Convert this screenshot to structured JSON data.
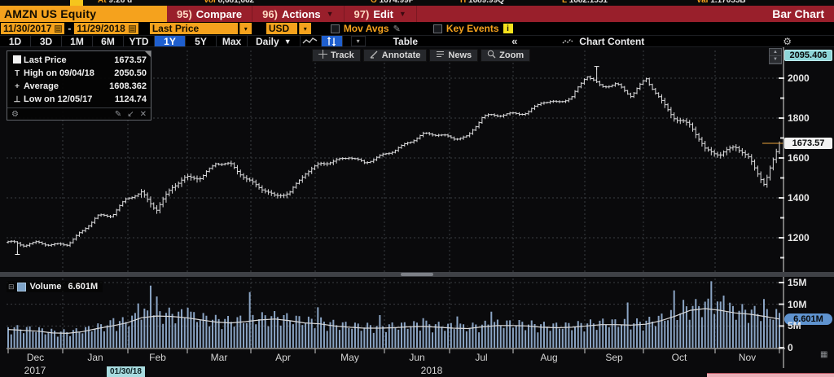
{
  "quote_strip": {
    "fragments": [
      {
        "x": 120,
        "label": "At",
        "value": "9:26 d"
      },
      {
        "x": 250,
        "label": "Vol",
        "value": "8,681,662"
      },
      {
        "x": 455,
        "label": "O",
        "value": "1674.99P"
      },
      {
        "x": 565,
        "label": "H",
        "value": "1689.99Q"
      },
      {
        "x": 690,
        "label": "L",
        "value": "1682.1551"
      },
      {
        "x": 855,
        "label": "Val",
        "value": "1.17055B"
      }
    ]
  },
  "title_bar": {
    "ticker": "AMZN US Equity",
    "menu_items": [
      {
        "num": "95)",
        "label": "Compare",
        "caret": false
      },
      {
        "num": "96)",
        "label": "Actions",
        "caret": true
      },
      {
        "num": "97)",
        "label": "Edit",
        "caret": true
      }
    ],
    "right_label": "Bar Chart"
  },
  "settings_bar": {
    "date_from": "11/30/2017",
    "date_to": "11/29/2018",
    "field": "Last Price",
    "currency": "USD",
    "mov_avgs_label": "Mov Avgs",
    "key_events_label": "Key Events",
    "info_glyph": "i"
  },
  "toolbar": {
    "range_tabs": [
      "1D",
      "3D",
      "1M",
      "6M",
      "YTD",
      "1Y",
      "5Y",
      "Max"
    ],
    "selected_tab": "1Y",
    "period": "Daily",
    "table_label": "Table",
    "collapse_label": "«",
    "chart_content_label": "Chart Content"
  },
  "chart_buttons": [
    {
      "icon": "track-icon",
      "label": "Track"
    },
    {
      "icon": "annotate-icon",
      "label": "Annotate"
    },
    {
      "icon": "news-icon",
      "label": "News"
    },
    {
      "icon": "zoom-icon",
      "label": "Zoom"
    }
  ],
  "legend": {
    "rows": [
      {
        "icon": "square",
        "label": "Last Price",
        "value": "1673.57"
      },
      {
        "icon": "high",
        "label": "High on 09/04/18",
        "value": "2050.50"
      },
      {
        "icon": "avg",
        "label": "Average",
        "value": "1608.362"
      },
      {
        "icon": "low",
        "label": "Low on 12/05/17",
        "value": "1124.74"
      }
    ]
  },
  "volume_legend": {
    "label": "Volume",
    "value": "6.601M"
  },
  "price_axis": {
    "top_badge": "2095.406",
    "last_badge": "1673.57",
    "ticks": [
      2000,
      1800,
      1600,
      1400,
      1200
    ],
    "minor_ticks": [
      1900,
      1700,
      1500,
      1300,
      1100
    ]
  },
  "volume_axis": {
    "ticks": [
      {
        "label": "15M",
        "v": 15
      },
      {
        "label": "10M",
        "v": 10
      },
      {
        "label": "5M",
        "v": 5
      },
      {
        "label": "0",
        "v": 0
      }
    ],
    "badge": "6.601M"
  },
  "time_axis": {
    "months": [
      "Dec",
      "Jan",
      "Feb",
      "Mar",
      "Apr",
      "May",
      "Jun",
      "Jul",
      "Aug",
      "Sep",
      "Oct",
      "Nov"
    ],
    "year_left": "2017",
    "year_mid": "2018",
    "event_badge": "01/30/18"
  },
  "chart_data": {
    "type": "bar",
    "symbol": "AMZN US Equity",
    "period": "Daily",
    "range": [
      "11/30/2017",
      "11/29/2018"
    ],
    "last_price": 1673.57,
    "high": {
      "date": "09/04/18",
      "value": 2050.5
    },
    "low": {
      "date": "12/05/17",
      "value": 1124.74
    },
    "average": 1608.362,
    "axis_top": 2095.406,
    "price_ticks": [
      1200,
      1400,
      1600,
      1800,
      2000
    ],
    "n_bars": 250,
    "weekly_closes": [
      1177,
      1162,
      1179,
      1168,
      1169,
      1229,
      1305,
      1312,
      1402,
      1429,
      1339,
      1448,
      1500,
      1501,
      1579,
      1571,
      1495,
      1447,
      1405,
      1430,
      1527,
      1572,
      1580,
      1603,
      1574,
      1610,
      1641,
      1677,
      1716,
      1715,
      1699,
      1710,
      1813,
      1813,
      1817,
      1823,
      1886,
      1882,
      1905,
      2013,
      1952,
      1970,
      1915,
      2003,
      1889,
      1789,
      1764,
      1642,
      1620,
      1665,
      1593,
      1460,
      1674
    ],
    "volatility_windows": [
      {
        "from": 43,
        "to": 62,
        "mult": 2.3
      },
      {
        "from": 72,
        "to": 91,
        "mult": 1.9
      },
      {
        "from": 95,
        "to": 106,
        "mult": 1.6
      },
      {
        "from": 211,
        "to": 249,
        "mult": 2.2
      }
    ],
    "high_day": 190,
    "low_day": 3,
    "volume": {
      "unit": "M",
      "ylim": [
        0,
        16.9
      ],
      "weekly_avg": [
        4.2,
        4.0,
        3.8,
        3.4,
        3.3,
        3.7,
        4.4,
        5.0,
        5.7,
        6.9,
        7.3,
        7.2,
        6.9,
        6.4,
        5.9,
        5.7,
        6.0,
        6.4,
        6.6,
        6.2,
        5.7,
        5.5,
        5.0,
        4.7,
        4.5,
        4.5,
        4.6,
        4.8,
        4.9,
        4.7,
        4.5,
        4.4,
        4.8,
        5.1,
        5.1,
        5.0,
        4.7,
        4.6,
        4.7,
        5.0,
        5.3,
        5.3,
        5.2,
        5.4,
        6.2,
        7.3,
        8.6,
        9.0,
        8.6,
        8.0,
        7.7,
        7.2,
        6.6
      ],
      "spikes": {
        "34": 6.8,
        "42": 10.2,
        "44": 9.0,
        "46": 14.3,
        "48": 11.8,
        "58": 9.2,
        "78": 12.8,
        "100": 9.3,
        "120": 7.5,
        "134": 6.8,
        "145": 7.2,
        "156": 8.3,
        "200": 10.4,
        "215": 13.2,
        "218": 11.0,
        "227": 15.3,
        "231": 12.0,
        "244": 11.2,
        "248": 8.9
      },
      "last": 6.601
    },
    "colors": {
      "bar": "#dcdcde",
      "volume_bar": "#8aa4c4",
      "volume_ma_line": "#d9d9d9",
      "last_price_line": "#e8a33d",
      "grid": "#3a3d42",
      "accent_amber": "#f5a21d",
      "accent_blue": "#1f5fce",
      "badge_teal": "#8ed5d8"
    }
  }
}
